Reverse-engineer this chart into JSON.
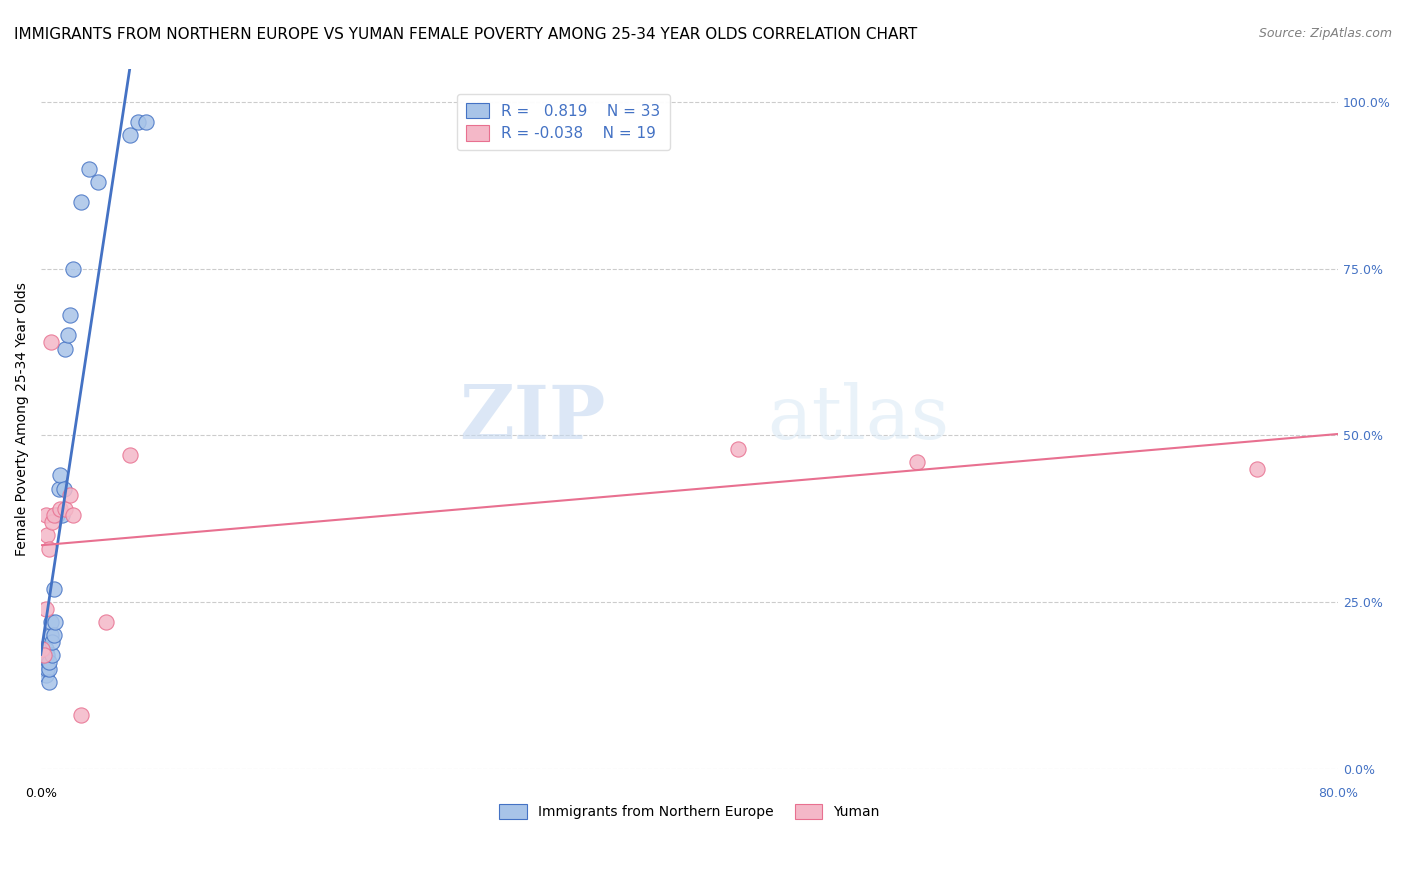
{
  "title": "IMMIGRANTS FROM NORTHERN EUROPE VS YUMAN FEMALE POVERTY AMONG 25-34 YEAR OLDS CORRELATION CHART",
  "source": "Source: ZipAtlas.com",
  "ylabel": "Female Poverty Among 25-34 Year Olds",
  "ytick_values": [
    0.0,
    0.25,
    0.5,
    0.75,
    1.0
  ],
  "ytick_labels": [
    "0.0%",
    "25.0%",
    "50.0%",
    "75.0%",
    "100.0%"
  ],
  "xlim": [
    0.0,
    0.8
  ],
  "ylim": [
    0.0,
    1.05
  ],
  "legend_blue_label": "Immigrants from Northern Europe",
  "legend_pink_label": "Yuman",
  "R_blue": 0.819,
  "N_blue": 33,
  "R_pink": -0.038,
  "N_pink": 19,
  "blue_scatter_x": [
    0.001,
    0.002,
    0.002,
    0.003,
    0.003,
    0.003,
    0.004,
    0.004,
    0.005,
    0.005,
    0.005,
    0.006,
    0.006,
    0.007,
    0.007,
    0.008,
    0.008,
    0.009,
    0.01,
    0.011,
    0.012,
    0.013,
    0.014,
    0.015,
    0.017,
    0.018,
    0.02,
    0.025,
    0.03,
    0.035,
    0.055,
    0.06,
    0.065
  ],
  "blue_scatter_y": [
    0.17,
    0.17,
    0.15,
    0.14,
    0.16,
    0.18,
    0.15,
    0.17,
    0.13,
    0.15,
    0.16,
    0.2,
    0.22,
    0.17,
    0.19,
    0.27,
    0.2,
    0.22,
    0.38,
    0.42,
    0.44,
    0.38,
    0.42,
    0.63,
    0.65,
    0.68,
    0.75,
    0.85,
    0.9,
    0.88,
    0.95,
    0.97,
    0.97
  ],
  "pink_scatter_x": [
    0.001,
    0.002,
    0.003,
    0.003,
    0.004,
    0.005,
    0.006,
    0.007,
    0.008,
    0.012,
    0.015,
    0.018,
    0.02,
    0.025,
    0.04,
    0.055,
    0.43,
    0.54,
    0.75
  ],
  "pink_scatter_y": [
    0.18,
    0.17,
    0.24,
    0.38,
    0.35,
    0.33,
    0.64,
    0.37,
    0.38,
    0.39,
    0.39,
    0.41,
    0.38,
    0.08,
    0.22,
    0.47,
    0.48,
    0.46,
    0.45
  ],
  "blue_color": "#a8c4e8",
  "pink_color": "#f4b8c8",
  "blue_line_color": "#4472c4",
  "pink_line_color": "#e87090",
  "watermark_zip": "ZIP",
  "watermark_atlas": "atlas",
  "marker_size": 120,
  "grid_color": "#cccccc",
  "grid_linestyle": "--",
  "background_color": "#ffffff",
  "title_fontsize": 11,
  "axis_label_fontsize": 10,
  "tick_fontsize": 9,
  "source_fontsize": 9
}
